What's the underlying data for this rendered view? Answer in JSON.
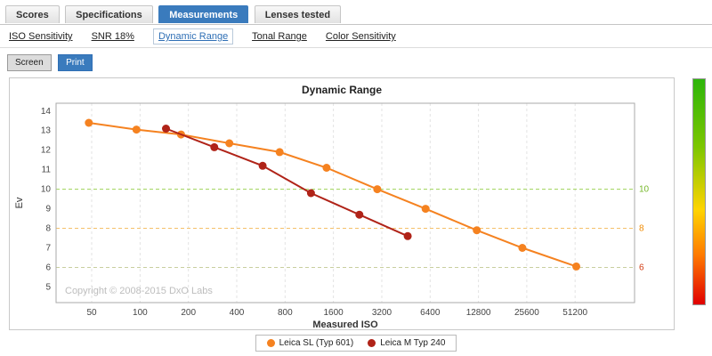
{
  "tabs": [
    {
      "label": "Scores",
      "active": false
    },
    {
      "label": "Specifications",
      "active": false
    },
    {
      "label": "Measurements",
      "active": true
    },
    {
      "label": "Lenses tested",
      "active": false
    }
  ],
  "subnav": [
    {
      "label": "ISO Sensitivity",
      "active": false
    },
    {
      "label": "SNR 18%",
      "active": false
    },
    {
      "label": "Dynamic Range",
      "active": true
    },
    {
      "label": "Tonal Range",
      "active": false
    },
    {
      "label": "Color Sensitivity",
      "active": false
    }
  ],
  "viewbar": {
    "screen_label": "Screen",
    "print_label": "Print"
  },
  "chart_data": {
    "type": "line",
    "title": "Dynamic Range",
    "xlabel": "Measured ISO",
    "ylabel": "Ev",
    "x_scale": "log2",
    "x_ticks": [
      50,
      100,
      200,
      400,
      800,
      1600,
      3200,
      6400,
      12800,
      25600,
      51200
    ],
    "y_ticks": [
      5,
      6,
      7,
      8,
      9,
      10,
      11,
      12,
      13,
      14
    ],
    "x_range": [
      30,
      120000
    ],
    "y_range": [
      4.2,
      14.4
    ],
    "grid": "vertical-dashed",
    "legend_position": "bottom-center",
    "threshold_lines": [
      {
        "value": 10,
        "line_color": "#9fd357",
        "label": "10",
        "label_color": "#76b82a"
      },
      {
        "value": 8,
        "line_color": "#f5c06a",
        "label": "8",
        "label_color": "#f08a00"
      },
      {
        "value": 6,
        "line_color": "#c9cf9f",
        "label": "6",
        "label_color": "#d23c12"
      }
    ],
    "series": [
      {
        "name": "Leica SL (Typ 601)",
        "color": "#f58220",
        "points": [
          [
            48,
            13.4
          ],
          [
            95,
            13.05
          ],
          [
            180,
            12.8
          ],
          [
            360,
            12.35
          ],
          [
            740,
            11.9
          ],
          [
            1450,
            11.1
          ],
          [
            3000,
            10.0
          ],
          [
            6000,
            9.0
          ],
          [
            12500,
            7.9
          ],
          [
            24000,
            7.0
          ],
          [
            52000,
            6.05
          ]
        ]
      },
      {
        "name": "Leica M Typ 240",
        "color": "#b02318",
        "points": [
          [
            145,
            13.1
          ],
          [
            290,
            12.15
          ],
          [
            580,
            11.2
          ],
          [
            1160,
            9.8
          ],
          [
            2320,
            8.7
          ],
          [
            4640,
            7.6
          ]
        ]
      }
    ],
    "copyright": "Copyright © 2008-2015 DxO Labs"
  },
  "quality_scale": {
    "gradient_stops": [
      "#2db50a 0%",
      "#7cc600 30%",
      "#ffd400 58%",
      "#ff7a00 78%",
      "#e00000 100%"
    ]
  }
}
